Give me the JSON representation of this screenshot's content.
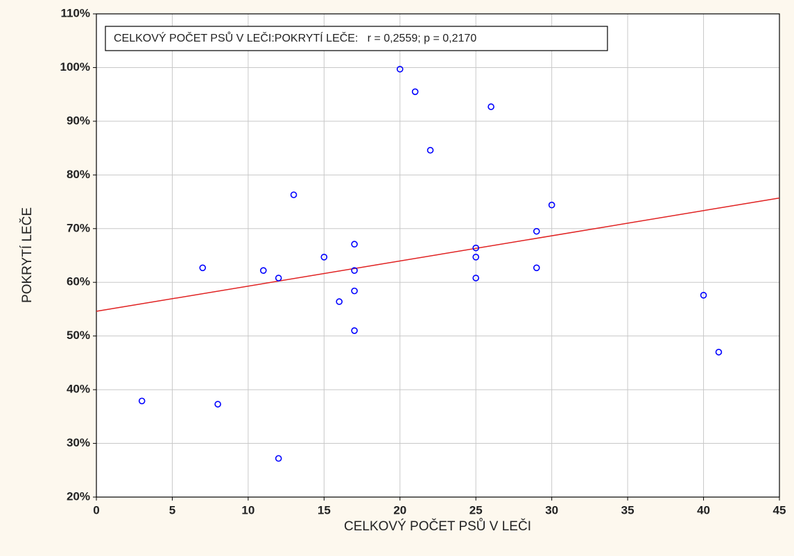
{
  "chart_data": {
    "type": "scatter",
    "annotation": "CELKOVÝ POČET PSŮ V LEČI:POKRYTÍ LEČE:   r = 0,2559; p = 0,2170",
    "x_label": "CELKOVÝ POČET PSŮ V LEČI",
    "y_label": "POKRYTÍ LEČE",
    "xlim": [
      0,
      45
    ],
    "ylim": [
      20,
      110
    ],
    "xticks": [
      0,
      5,
      10,
      15,
      20,
      25,
      30,
      35,
      40,
      45
    ],
    "yticks": [
      {
        "value": 20,
        "label": "20%"
      },
      {
        "value": 30,
        "label": "30%"
      },
      {
        "value": 40,
        "label": "40%"
      },
      {
        "value": 50,
        "label": "50%"
      },
      {
        "value": 60,
        "label": "60%"
      },
      {
        "value": 70,
        "label": "70%"
      },
      {
        "value": 80,
        "label": "80%"
      },
      {
        "value": 90,
        "label": "90%"
      },
      {
        "value": 100,
        "label": "100%"
      },
      {
        "value": 110,
        "label": "110%"
      }
    ],
    "grid": true,
    "series": [
      {
        "color": "#0000ff",
        "x": [
          3,
          7,
          8,
          11,
          12,
          12,
          13,
          15,
          16,
          17,
          17,
          17,
          17,
          20,
          21,
          22,
          25,
          25,
          25,
          26,
          29,
          29,
          30,
          40,
          41
        ],
        "values": [
          37.9,
          62.7,
          37.3,
          62.2,
          60.8,
          27.2,
          76.3,
          64.7,
          56.4,
          67.1,
          62.2,
          58.4,
          51,
          99.7,
          95.5,
          84.6,
          66.4,
          64.7,
          60.8,
          92.7,
          69.5,
          62.7,
          74.4,
          57.6,
          47
        ]
      }
    ],
    "trend_line": {
      "color": "#e02020",
      "x": [
        0,
        45
      ],
      "values": [
        54.6,
        75.7
      ]
    }
  }
}
